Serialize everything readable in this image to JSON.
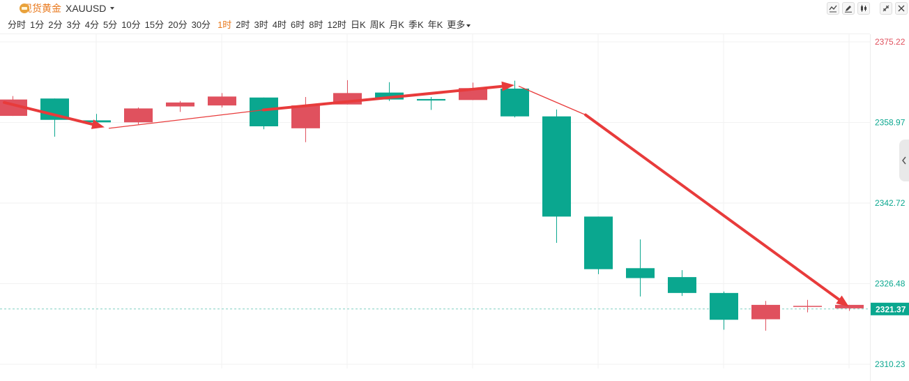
{
  "header": {
    "symbol_name": "现货黄金",
    "symbol_code": "XAUUSD"
  },
  "periods": [
    {
      "label": "分时",
      "name": "period-tick"
    },
    {
      "label": "1分",
      "name": "period-1m"
    },
    {
      "label": "2分",
      "name": "period-2m"
    },
    {
      "label": "3分",
      "name": "period-3m"
    },
    {
      "label": "4分",
      "name": "period-4m"
    },
    {
      "label": "5分",
      "name": "period-5m"
    },
    {
      "label": "10分",
      "name": "period-10m"
    },
    {
      "label": "15分",
      "name": "period-15m"
    },
    {
      "label": "20分",
      "name": "period-20m"
    },
    {
      "label": "30分",
      "name": "period-30m"
    },
    {
      "label": "1时",
      "name": "period-1h"
    },
    {
      "label": "2时",
      "name": "period-2h"
    },
    {
      "label": "3时",
      "name": "period-3h"
    },
    {
      "label": "4时",
      "name": "period-4h"
    },
    {
      "label": "6时",
      "name": "period-6h"
    },
    {
      "label": "8时",
      "name": "period-8h"
    },
    {
      "label": "12时",
      "name": "period-12h"
    },
    {
      "label": "日K",
      "name": "period-day"
    },
    {
      "label": "周K",
      "name": "period-week"
    },
    {
      "label": "月K",
      "name": "period-month"
    },
    {
      "label": "季K",
      "name": "period-quarter"
    },
    {
      "label": "年K",
      "name": "period-year"
    },
    {
      "label": "更多",
      "name": "period-more"
    }
  ],
  "active_period": "1时",
  "toolbar": {
    "icons": [
      "line-chart-icon",
      "pencil-icon",
      "candlestick-icon",
      "shrink-icon",
      "close-icon"
    ]
  },
  "colors": {
    "up": "#e0515e",
    "down": "#0aa78f",
    "arrow": "#e83b3b",
    "accent": "#e8781c",
    "price_tag": "#0aa78f",
    "top_price": "#e0515e"
  },
  "chart_data": {
    "type": "candlestick",
    "ylim": [
      2310.23,
      2375.22
    ],
    "y_ticks": [
      {
        "label": "2375.22",
        "value": 2375.22,
        "color": "#e0515e"
      },
      {
        "label": "2358.97",
        "value": 2358.97,
        "color": "#0aa78f"
      },
      {
        "label": "2342.72",
        "value": 2342.72,
        "color": "#0aa78f"
      },
      {
        "label": "2326.48",
        "value": 2326.48,
        "color": "#0aa78f"
      },
      {
        "label": "2310.23",
        "value": 2310.23,
        "color": "#0aa78f"
      }
    ],
    "current_price": {
      "label": "2321.37",
      "value": 2321.37
    },
    "candles": [
      {
        "open": 2360.3,
        "close": 2363.6,
        "high": 2364.3,
        "low": 2360.3
      },
      {
        "open": 2363.8,
        "close": 2359.5,
        "high": 2363.8,
        "low": 2356.1
      },
      {
        "open": 2359.4,
        "close": 2359.0,
        "high": 2360.7,
        "low": 2358.5
      },
      {
        "open": 2359.0,
        "close": 2361.8,
        "high": 2362.0,
        "low": 2358.6
      },
      {
        "open": 2362.2,
        "close": 2363.0,
        "high": 2363.3,
        "low": 2361.1
      },
      {
        "open": 2362.4,
        "close": 2364.2,
        "high": 2364.9,
        "low": 2362.0
      },
      {
        "open": 2364.0,
        "close": 2358.2,
        "high": 2364.0,
        "low": 2357.6
      },
      {
        "open": 2357.8,
        "close": 2362.4,
        "high": 2364.1,
        "low": 2355.0
      },
      {
        "open": 2362.6,
        "close": 2364.9,
        "high": 2367.5,
        "low": 2362.6
      },
      {
        "open": 2365.0,
        "close": 2363.6,
        "high": 2367.1,
        "low": 2363.3
      },
      {
        "open": 2363.7,
        "close": 2363.4,
        "high": 2364.1,
        "low": 2361.5
      },
      {
        "open": 2363.5,
        "close": 2365.9,
        "high": 2367.0,
        "low": 2363.5
      },
      {
        "open": 2365.8,
        "close": 2360.2,
        "high": 2367.4,
        "low": 2360.0
      },
      {
        "open": 2360.2,
        "close": 2340.0,
        "high": 2361.6,
        "low": 2334.7
      },
      {
        "open": 2340.0,
        "close": 2329.4,
        "high": 2340.0,
        "low": 2328.4
      },
      {
        "open": 2329.6,
        "close": 2327.6,
        "high": 2335.4,
        "low": 2323.9
      },
      {
        "open": 2327.8,
        "close": 2324.6,
        "high": 2329.2,
        "low": 2324.0
      },
      {
        "open": 2324.6,
        "close": 2319.2,
        "high": 2324.9,
        "low": 2317.2
      },
      {
        "open": 2319.3,
        "close": 2322.2,
        "high": 2323.0,
        "low": 2317.0
      },
      {
        "open": 2322.0,
        "close": 2322.0,
        "high": 2323.2,
        "low": 2320.7
      },
      {
        "open": 2321.5,
        "close": 2322.2,
        "high": 2322.2,
        "low": 2321.0
      }
    ],
    "annotations": [
      {
        "type": "arrow",
        "from": [
          -0.2,
          2363.0
        ],
        "to": [
          2.2,
          2358.0
        ],
        "label": ""
      },
      {
        "type": "line",
        "from": [
          2.3,
          2357.8
        ],
        "to": [
          6.0,
          2361.5
        ],
        "label": ""
      },
      {
        "type": "arrow",
        "from": [
          6.0,
          2361.5
        ],
        "to": [
          12.0,
          2366.5
        ],
        "label": ""
      },
      {
        "type": "line",
        "from": [
          12.1,
          2366.3
        ],
        "to": [
          13.7,
          2360.5
        ],
        "label": ""
      },
      {
        "type": "arrow",
        "from": [
          13.7,
          2360.5
        ],
        "to": [
          20.0,
          2321.8
        ],
        "label": ""
      }
    ]
  }
}
